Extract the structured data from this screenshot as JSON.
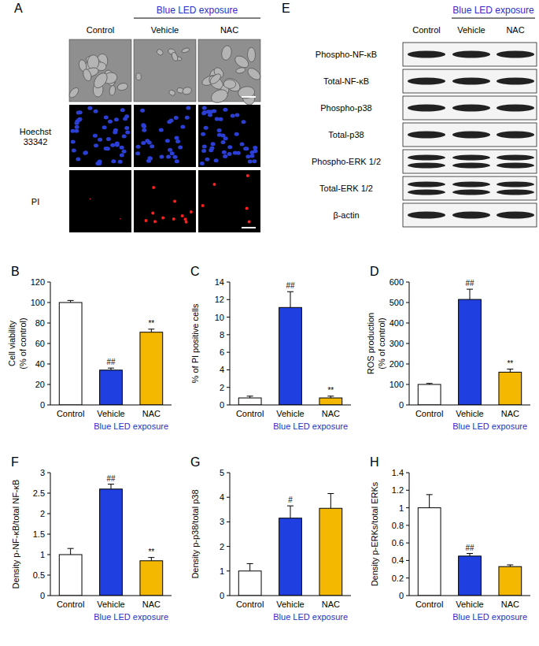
{
  "image_panels": [
    {
      "panel": "A",
      "group_label": "Blue LED exposure",
      "columns": [
        "Control",
        "Vehicle",
        "NAC"
      ],
      "rows": [
        null,
        "Hoechst 33342",
        "PI"
      ]
    },
    {
      "panel": "E",
      "group_label": "Blue LED exposure",
      "columns": [
        "Control",
        "Vehicle",
        "NAC"
      ],
      "rows": [
        "Phospho-NF-κB",
        "Total-NF-κB",
        "Phospho-p38",
        "Total-p38",
        "Phospho-ERK 1/2",
        "Total-ERK 1/2",
        "β-actin"
      ]
    }
  ],
  "chart_data": [
    {
      "type": "bar",
      "panel": "B",
      "ylabel": [
        "Cell viability",
        "(% of control)"
      ],
      "categories": [
        "Control",
        "Vehicle",
        "NAC"
      ],
      "values": [
        100,
        34,
        71
      ],
      "errors": [
        2,
        2,
        3
      ],
      "colors": [
        "#ffffff",
        "#1f3fe0",
        "#f5b800"
      ],
      "ylim": [
        0,
        120
      ],
      "yticks": [
        0,
        20,
        40,
        60,
        80,
        100,
        120
      ],
      "annotations": [
        {
          "index": 1,
          "text": "##"
        },
        {
          "index": 2,
          "text": "**"
        }
      ],
      "group_label": "Blue LED exposure"
    },
    {
      "type": "bar",
      "panel": "C",
      "ylabel": [
        "% of PI positive cells"
      ],
      "categories": [
        "Control",
        "Vehicle",
        "NAC"
      ],
      "values": [
        0.8,
        11.1,
        0.8
      ],
      "errors": [
        0.2,
        1.8,
        0.2
      ],
      "colors": [
        "#ffffff",
        "#1f3fe0",
        "#f5b800"
      ],
      "ylim": [
        0,
        14
      ],
      "yticks": [
        0,
        2,
        4,
        6,
        8,
        10,
        12,
        14
      ],
      "annotations": [
        {
          "index": 1,
          "text": "##"
        },
        {
          "index": 2,
          "text": "**"
        }
      ],
      "group_label": "Blue LED exposure"
    },
    {
      "type": "bar",
      "panel": "D",
      "ylabel": [
        "ROS production",
        "(% of control)"
      ],
      "categories": [
        "Control",
        "Vehicle",
        "NAC"
      ],
      "values": [
        100,
        515,
        160
      ],
      "errors": [
        5,
        50,
        15
      ],
      "colors": [
        "#ffffff",
        "#1f3fe0",
        "#f5b800"
      ],
      "ylim": [
        0,
        600
      ],
      "yticks": [
        0,
        100,
        200,
        300,
        400,
        500,
        600
      ],
      "annotations": [
        {
          "index": 1,
          "text": "##"
        },
        {
          "index": 2,
          "text": "**"
        }
      ],
      "group_label": "Blue LED exposure"
    },
    {
      "type": "bar",
      "panel": "F",
      "ylabel": [
        "Density p-NF-κB/total NF-κB"
      ],
      "categories": [
        "Control",
        "Vehicle",
        "NAC"
      ],
      "values": [
        1,
        2.6,
        0.85
      ],
      "errors": [
        0.15,
        0.12,
        0.08
      ],
      "colors": [
        "#ffffff",
        "#1f3fe0",
        "#f5b800"
      ],
      "ylim": [
        0,
        3
      ],
      "yticks": [
        0,
        0.5,
        1,
        1.5,
        2,
        2.5,
        3
      ],
      "annotations": [
        {
          "index": 1,
          "text": "##"
        },
        {
          "index": 2,
          "text": "**"
        }
      ],
      "group_label": "Blue LED exposure"
    },
    {
      "type": "bar",
      "panel": "G",
      "ylabel": [
        "Density p-p38/total p38"
      ],
      "categories": [
        "Control",
        "Vehicle",
        "NAC"
      ],
      "values": [
        1,
        3.15,
        3.55
      ],
      "errors": [
        0.3,
        0.5,
        0.6
      ],
      "colors": [
        "#ffffff",
        "#1f3fe0",
        "#f5b800"
      ],
      "ylim": [
        0,
        5
      ],
      "yticks": [
        0,
        1,
        2,
        3,
        4,
        5
      ],
      "annotations": [
        {
          "index": 1,
          "text": "#"
        }
      ],
      "group_label": "Blue LED exposure"
    },
    {
      "type": "bar",
      "panel": "H",
      "ylabel": [
        "Density p-ERKs/total ERKs"
      ],
      "categories": [
        "Control",
        "Vehicle",
        "NAC"
      ],
      "values": [
        1,
        0.45,
        0.33
      ],
      "errors": [
        0.15,
        0.03,
        0.02
      ],
      "colors": [
        "#ffffff",
        "#1f3fe0",
        "#f5b800"
      ],
      "ylim": [
        0,
        1.4
      ],
      "yticks": [
        0,
        0.2,
        0.4,
        0.6,
        0.8,
        1,
        1.2,
        1.4
      ],
      "annotations": [
        {
          "index": 1,
          "text": "##"
        }
      ],
      "group_label": "Blue LED exposure"
    }
  ]
}
